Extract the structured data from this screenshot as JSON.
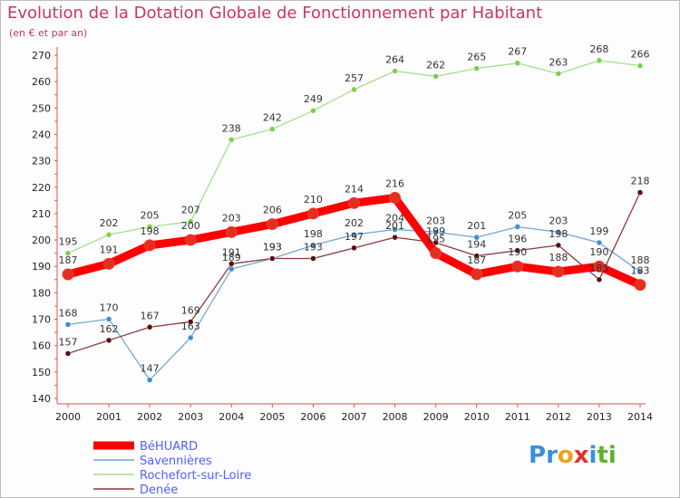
{
  "title": "Evolution de la Dotation Globale de Fonctionnement par Habitant",
  "subtitle": "(en € et par an)",
  "brand": {
    "letters": [
      {
        "ch": "P",
        "color": "#3a8fd8"
      },
      {
        "ch": "r",
        "color": "#3a8fd8"
      },
      {
        "ch": "o",
        "color": "#f0a020"
      },
      {
        "ch": "x",
        "color": "#e03030"
      },
      {
        "ch": "i",
        "color": "#3a8fd8"
      },
      {
        "ch": "t",
        "color": "#60b030"
      },
      {
        "ch": "i",
        "color": "#60b030"
      }
    ]
  },
  "chart_data": {
    "type": "line",
    "title": "Evolution de la Dotation Globale de Fonctionnement par Habitant",
    "subtitle": "(en € et par an)",
    "x": [
      "2000",
      "2001",
      "2002",
      "2003",
      "2004",
      "2005",
      "2006",
      "2007",
      "2008",
      "2009",
      "2010",
      "2011",
      "2012",
      "2013",
      "2014"
    ],
    "ylim": [
      140,
      270
    ],
    "yticks": [
      140,
      150,
      160,
      170,
      180,
      190,
      200,
      210,
      220,
      230,
      240,
      250,
      260,
      270
    ],
    "grid": false,
    "legend_position": "bottom-left",
    "series": [
      {
        "name": "BéHUARD",
        "color": "#ff0000",
        "marker": "#e03020",
        "width": 9,
        "values": [
          187,
          191,
          198,
          200,
          203,
          206,
          210,
          214,
          216,
          195,
          187,
          190,
          188,
          190,
          183
        ]
      },
      {
        "name": "Savennières",
        "color": "#6fa8d6",
        "marker": "#3d8fd0",
        "width": 1.3,
        "values": [
          168,
          170,
          147,
          163,
          189,
          193,
          198,
          202,
          204,
          203,
          201,
          205,
          203,
          199,
          188
        ]
      },
      {
        "name": "Rochefort-sur-Loire",
        "color": "#a8e08a",
        "marker": "#7cd04a",
        "width": 1.3,
        "values": [
          195,
          202,
          205,
          207,
          238,
          242,
          249,
          257,
          264,
          262,
          265,
          267,
          263,
          268,
          266
        ]
      },
      {
        "name": "Denée",
        "color": "#8a3a3a",
        "marker": "#5a1010",
        "width": 1.3,
        "values": [
          157,
          162,
          167,
          169,
          191,
          193,
          193,
          197,
          201,
          199,
          194,
          196,
          198,
          185,
          218
        ]
      }
    ]
  }
}
